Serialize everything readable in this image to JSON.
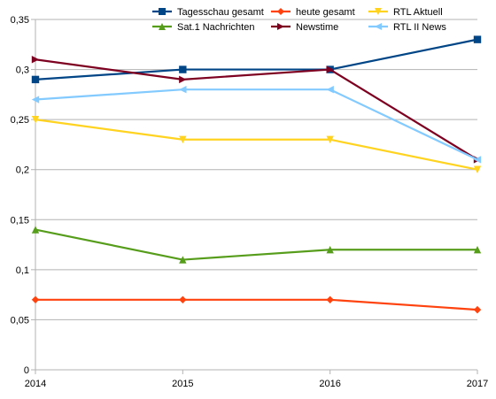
{
  "chart_data": {
    "type": "line",
    "title": "",
    "xlabel": "",
    "ylabel": "",
    "x": [
      "2014",
      "2015",
      "2016",
      "2017"
    ],
    "ylim": [
      0,
      0.35
    ],
    "yticks": [
      0,
      0.05,
      0.1,
      0.15,
      0.2,
      0.25,
      0.3,
      0.35
    ],
    "ytick_labels": [
      "0",
      "0,05",
      "0,1",
      "0,15",
      "0,2",
      "0,25",
      "0,3",
      "0,35"
    ],
    "grid": "horizontal",
    "legend_position": "top-right",
    "series": [
      {
        "name": "Tagesschau gesamt",
        "values": [
          0.29,
          0.3,
          0.3,
          0.33
        ],
        "color": "#004586",
        "marker": "square"
      },
      {
        "name": "heute gesamt",
        "values": [
          0.07,
          0.07,
          0.07,
          0.06
        ],
        "color": "#ff420e",
        "marker": "diamond"
      },
      {
        "name": "RTL Aktuell",
        "values": [
          0.25,
          0.23,
          0.23,
          0.2
        ],
        "color": "#ffd320",
        "marker": "triangle-down"
      },
      {
        "name": "Sat.1 Nachrichten",
        "values": [
          0.14,
          0.11,
          0.12,
          0.12
        ],
        "color": "#579d1c",
        "marker": "triangle-up"
      },
      {
        "name": "Newstime",
        "values": [
          0.31,
          0.29,
          0.3,
          0.21
        ],
        "color": "#7e0021",
        "marker": "triangle-right"
      },
      {
        "name": "RTL II News",
        "values": [
          0.27,
          0.28,
          0.28,
          0.21
        ],
        "color": "#83caff",
        "marker": "triangle-left"
      }
    ]
  }
}
